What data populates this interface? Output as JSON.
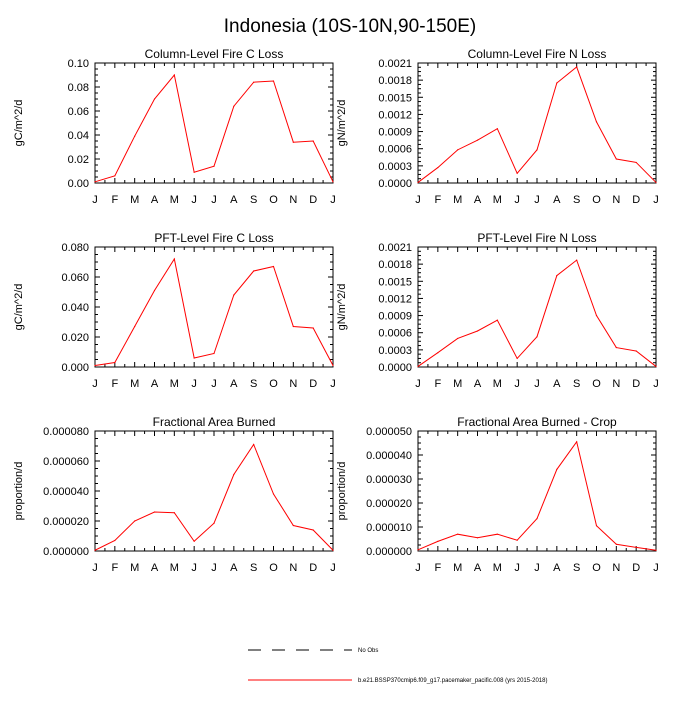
{
  "page_title": "Indonesia (10S-10N,90-150E)",
  "legend": {
    "obs_label": "No Obs",
    "model_label": "b.e21.BSSP370cmip6.f09_g17.pacemaker_pacific.008 (yrs 2015-2018)",
    "model_color": "#ff0000",
    "obs_color": "#000000"
  },
  "chart_data": [
    {
      "type": "line",
      "title": "Column-Level Fire C Loss",
      "ylabel": "gC/m^2/d",
      "xlabel": "",
      "categories": [
        "J",
        "F",
        "M",
        "A",
        "M",
        "J",
        "J",
        "A",
        "S",
        "O",
        "N",
        "D",
        "J"
      ],
      "ylim": [
        0,
        0.1
      ],
      "yticks": [
        "0.00",
        "0.02",
        "0.04",
        "0.06",
        "0.08",
        "0.10"
      ],
      "yticks_values": [
        0,
        0.02,
        0.04,
        0.06,
        0.08,
        0.1
      ],
      "series": [
        {
          "color": "#ff0000",
          "values": [
            0.001,
            0.006,
            0.039,
            0.07,
            0.09,
            0.009,
            0.014,
            0.064,
            0.084,
            0.085,
            0.034,
            0.035,
            0.001
          ]
        }
      ]
    },
    {
      "type": "line",
      "title": "Column-Level Fire N Loss",
      "ylabel": "gN/m^2/d",
      "xlabel": "",
      "categories": [
        "J",
        "F",
        "M",
        "A",
        "M",
        "J",
        "J",
        "A",
        "S",
        "O",
        "N",
        "D",
        "J"
      ],
      "ylim": [
        0,
        0.0021
      ],
      "yticks": [
        "0.0000",
        "0.0003",
        "0.0006",
        "0.0009",
        "0.0012",
        "0.0015",
        "0.0018",
        "0.0021"
      ],
      "yticks_values": [
        0,
        0.0003,
        0.0006,
        0.0009,
        0.0012,
        0.0015,
        0.0018,
        0.0021
      ],
      "series": [
        {
          "color": "#ff0000",
          "values": [
            1e-05,
            0.00027,
            0.00058,
            0.00075,
            0.00095,
            0.00017,
            0.00058,
            0.00175,
            0.00203,
            0.00107,
            0.00042,
            0.00036,
            1e-05
          ]
        }
      ]
    },
    {
      "type": "line",
      "title": "PFT-Level Fire C Loss",
      "ylabel": "gC/m^2/d",
      "xlabel": "",
      "categories": [
        "J",
        "F",
        "M",
        "A",
        "M",
        "J",
        "J",
        "A",
        "S",
        "O",
        "N",
        "D",
        "J"
      ],
      "ylim": [
        0,
        0.08
      ],
      "yticks": [
        "0.000",
        "0.020",
        "0.040",
        "0.060",
        "0.080"
      ],
      "yticks_values": [
        0,
        0.02,
        0.04,
        0.06,
        0.08
      ],
      "series": [
        {
          "color": "#ff0000",
          "values": [
            0.001,
            0.003,
            0.027,
            0.051,
            0.072,
            0.006,
            0.009,
            0.048,
            0.064,
            0.067,
            0.027,
            0.026,
            0.001
          ]
        }
      ]
    },
    {
      "type": "line",
      "title": "PFT-Level Fire N Loss",
      "ylabel": "gN/m^2/d",
      "xlabel": "",
      "categories": [
        "J",
        "F",
        "M",
        "A",
        "M",
        "J",
        "J",
        "A",
        "S",
        "O",
        "N",
        "D",
        "J"
      ],
      "ylim": [
        0,
        0.0021
      ],
      "yticks": [
        "0.0000",
        "0.0003",
        "0.0006",
        "0.0009",
        "0.0012",
        "0.0015",
        "0.0018",
        "0.0021"
      ],
      "yticks_values": [
        0,
        0.0003,
        0.0006,
        0.0009,
        0.0012,
        0.0015,
        0.0018,
        0.0021
      ],
      "series": [
        {
          "color": "#ff0000",
          "values": [
            1e-05,
            0.00025,
            0.0005,
            0.00063,
            0.00082,
            0.00015,
            0.00053,
            0.0016,
            0.00187,
            0.0009,
            0.00034,
            0.00028,
            1e-05
          ]
        }
      ]
    },
    {
      "type": "line",
      "title": "Fractional Area Burned",
      "ylabel": "proportion/d",
      "xlabel": "",
      "categories": [
        "J",
        "F",
        "M",
        "A",
        "M",
        "J",
        "J",
        "A",
        "S",
        "O",
        "N",
        "D",
        "J"
      ],
      "ylim": [
        0,
        8e-05
      ],
      "yticks": [
        "0.000000",
        "0.000020",
        "0.000040",
        "0.000060",
        "0.000080"
      ],
      "yticks_values": [
        0,
        2e-05,
        4e-05,
        6e-05,
        8e-05
      ],
      "series": [
        {
          "color": "#ff0000",
          "values": [
            5e-07,
            7e-06,
            2e-05,
            2.6e-05,
            2.55e-05,
            6.5e-06,
            1.85e-05,
            5.1e-05,
            7.1e-05,
            3.8e-05,
            1.7e-05,
            1.4e-05,
            5e-07
          ]
        }
      ]
    },
    {
      "type": "line",
      "title": "Fractional Area Burned - Crop",
      "ylabel": "proportion/d",
      "xlabel": "",
      "categories": [
        "J",
        "F",
        "M",
        "A",
        "M",
        "J",
        "J",
        "A",
        "S",
        "O",
        "N",
        "D",
        "J"
      ],
      "ylim": [
        0,
        5e-05
      ],
      "yticks": [
        "0.000000",
        "0.000010",
        "0.000020",
        "0.000030",
        "0.000040",
        "0.000050"
      ],
      "yticks_values": [
        0,
        1e-05,
        2e-05,
        3e-05,
        4e-05,
        5e-05
      ],
      "series": [
        {
          "color": "#ff0000",
          "values": [
            5e-07,
            4e-06,
            7e-06,
            5.5e-06,
            7e-06,
            4.5e-06,
            1.35e-05,
            3.4e-05,
            4.55e-05,
            1.05e-05,
            2.8e-06,
            1.5e-06,
            3e-07
          ]
        }
      ]
    }
  ]
}
